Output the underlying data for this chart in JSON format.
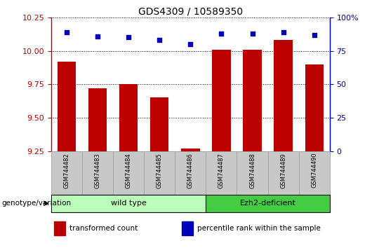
{
  "title": "GDS4309 / 10589350",
  "samples": [
    "GSM744482",
    "GSM744483",
    "GSM744484",
    "GSM744485",
    "GSM744486",
    "GSM744487",
    "GSM744488",
    "GSM744489",
    "GSM744490"
  ],
  "transformed_counts": [
    9.92,
    9.72,
    9.75,
    9.65,
    9.27,
    10.01,
    10.01,
    10.08,
    9.9
  ],
  "percentile_ranks": [
    89,
    86,
    85,
    83,
    80,
    88,
    88,
    89,
    87
  ],
  "ylim_left": [
    9.25,
    10.25
  ],
  "ylim_right": [
    0,
    100
  ],
  "yticks_left": [
    9.25,
    9.5,
    9.75,
    10.0,
    10.25
  ],
  "yticks_right": [
    0,
    25,
    50,
    75,
    100
  ],
  "ytick_labels_right": [
    "0",
    "25",
    "50",
    "75",
    "100%"
  ],
  "bar_color": "#BB0000",
  "dot_color": "#0000BB",
  "left_axis_color": "#BB0000",
  "right_axis_color": "#0000BB",
  "group_label": "genotype/variation",
  "group_ranges": [
    {
      "label": "wild type",
      "start": 0,
      "end": 4,
      "color": "#BBFFBB"
    },
    {
      "label": "Ezh2-deficient",
      "start": 5,
      "end": 8,
      "color": "#44CC44"
    }
  ],
  "legend_items": [
    {
      "label": "transformed count",
      "color": "#BB0000"
    },
    {
      "label": "percentile rank within the sample",
      "color": "#0000BB"
    }
  ],
  "xtick_bg_color": "#CCCCCC"
}
